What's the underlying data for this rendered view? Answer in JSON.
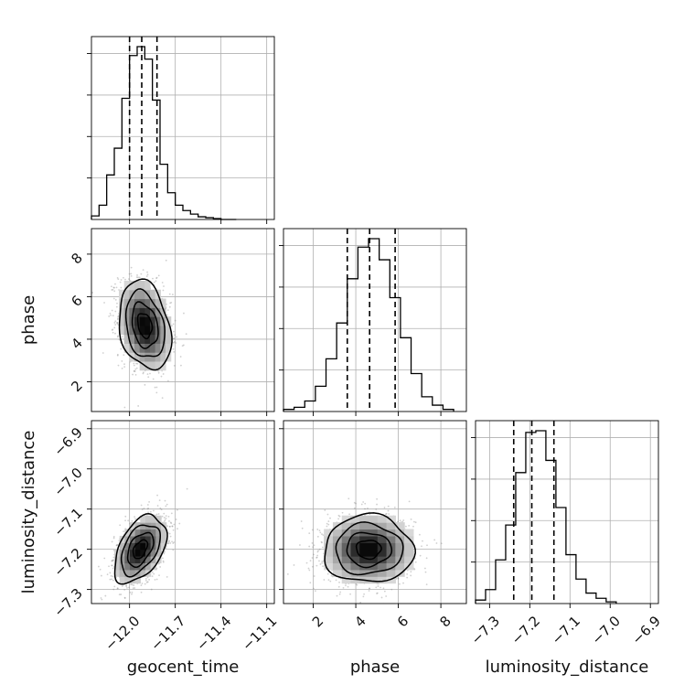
{
  "chart_data": {
    "type": "corner",
    "parameters": [
      "geocent_time",
      "phase",
      "luminosity_distance"
    ],
    "axes": {
      "geocent_time": {
        "range": [
          -12.25,
          -11.05
        ],
        "ticks": [
          -12.0,
          -11.7,
          -11.4,
          -11.1
        ],
        "tick_labels": [
          "−12.0",
          "−11.7",
          "−11.4",
          "−11.1"
        ]
      },
      "phase": {
        "range": [
          0.6,
          9.2
        ],
        "ticks": [
          2,
          4,
          6,
          8
        ],
        "tick_labels": [
          "2",
          "4",
          "6",
          "8"
        ]
      },
      "luminosity_distance": {
        "range": [
          -7.335,
          -6.88
        ],
        "ticks": [
          -7.3,
          -7.2,
          -7.1,
          -7.0,
          -6.9
        ],
        "tick_labels": [
          "−7.3",
          "−7.2",
          "−7.1",
          "−7.0",
          "−6.9"
        ]
      }
    },
    "grid": true,
    "histograms": {
      "geocent_time": {
        "bin_edges": [
          -12.25,
          -12.2,
          -12.15,
          -12.1,
          -12.05,
          -12.0,
          -11.95,
          -11.9,
          -11.85,
          -11.8,
          -11.75,
          -11.7,
          -11.65,
          -11.6,
          -11.55,
          -11.5,
          -11.45,
          -11.4,
          -11.35,
          -11.3
        ],
        "counts": [
          2,
          8,
          25,
          40,
          68,
          92,
          97,
          90,
          67,
          31,
          15,
          8,
          5,
          3,
          1.5,
          1,
          0.5,
          0,
          0
        ],
        "quantiles": [
          -12.0,
          -11.92,
          -11.82
        ]
      },
      "phase": {
        "bin_edges": [
          0.6,
          1.1,
          1.6,
          2.1,
          2.6,
          3.1,
          3.6,
          4.1,
          4.6,
          5.1,
          5.6,
          6.1,
          6.6,
          7.1,
          7.6,
          8.1,
          8.6
        ],
        "counts": [
          1,
          2,
          5,
          12,
          25,
          42,
          63,
          78,
          82,
          72,
          54,
          35,
          18,
          7,
          3,
          1
        ],
        "quantiles": [
          3.6,
          4.65,
          5.85
        ]
      },
      "luminosity_distance": {
        "bin_edges": [
          -7.335,
          -7.31,
          -7.285,
          -7.26,
          -7.235,
          -7.21,
          -7.185,
          -7.16,
          -7.135,
          -7.11,
          -7.085,
          -7.06,
          -7.035,
          -7.01,
          -6.985
        ],
        "counts": [
          2,
          8,
          25,
          45,
          75,
          98,
          99,
          82,
          55,
          28,
          14,
          6,
          3,
          1
        ],
        "quantiles": [
          -7.24,
          -7.195,
          -7.14
        ]
      }
    },
    "pairs": [
      {
        "x": "geocent_time",
        "y": "phase",
        "center": [
          -11.9,
          4.65
        ],
        "sigma": [
          0.085,
          1.05
        ],
        "correlation": -0.25
      },
      {
        "x": "geocent_time",
        "y": "luminosity_distance",
        "center": [
          -11.93,
          -7.2
        ],
        "sigma": [
          0.085,
          0.042
        ],
        "correlation": 0.45
      },
      {
        "x": "phase",
        "y": "luminosity_distance",
        "center": [
          4.6,
          -7.2
        ],
        "sigma": [
          1.05,
          0.042
        ],
        "correlation": 0.0
      }
    ]
  }
}
